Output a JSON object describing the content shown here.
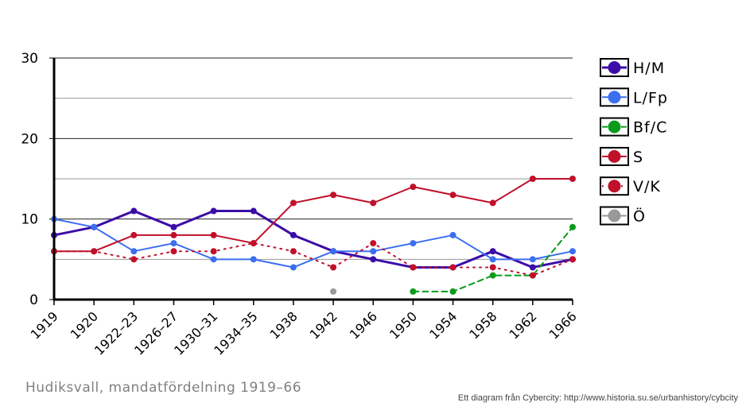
{
  "caption": "Hudiksvall, mandatfördelning 1919–66",
  "credit": "Ett diagram från Cybercity: http://www.historia.su.se/urbanhistory/cybcity",
  "chart_data": {
    "type": "line",
    "categories": [
      "1919",
      "1920",
      "1922–23",
      "1926–27",
      "1930–31",
      "1934–35",
      "1938",
      "1942",
      "1946",
      "1950",
      "1954",
      "1958",
      "1962",
      "1966"
    ],
    "ylim": [
      0,
      30
    ],
    "yticks": [
      0,
      10,
      20,
      30
    ],
    "grid": true,
    "legend_position": "right",
    "series": [
      {
        "name": "H/M",
        "color": "#3c0ca8",
        "style": "solid-bold",
        "values": [
          8,
          9,
          11,
          9,
          11,
          11,
          8,
          6,
          5,
          4,
          4,
          6,
          4,
          5
        ]
      },
      {
        "name": "L/Fp",
        "color": "#3b6ef0",
        "style": "solid",
        "values": [
          10,
          9,
          6,
          7,
          5,
          5,
          4,
          6,
          6,
          7,
          8,
          5,
          5,
          6
        ]
      },
      {
        "name": "Bf/C",
        "color": "#0b9b1b",
        "style": "dashed",
        "values": [
          null,
          null,
          null,
          null,
          null,
          null,
          null,
          null,
          null,
          1,
          1,
          3,
          3,
          9
        ]
      },
      {
        "name": "S",
        "color": "#c0102a",
        "style": "solid",
        "values": [
          6,
          6,
          8,
          8,
          8,
          7,
          12,
          13,
          12,
          14,
          13,
          12,
          15,
          15
        ]
      },
      {
        "name": "V/K",
        "color": "#c0102a",
        "style": "dotted",
        "values": [
          6,
          6,
          5,
          6,
          6,
          7,
          6,
          4,
          7,
          4,
          4,
          4,
          3,
          5
        ]
      },
      {
        "name": "Ö",
        "color": "#999999",
        "style": "solid",
        "values": [
          null,
          null,
          null,
          null,
          null,
          null,
          null,
          1,
          null,
          null,
          null,
          null,
          null,
          null
        ]
      }
    ]
  }
}
